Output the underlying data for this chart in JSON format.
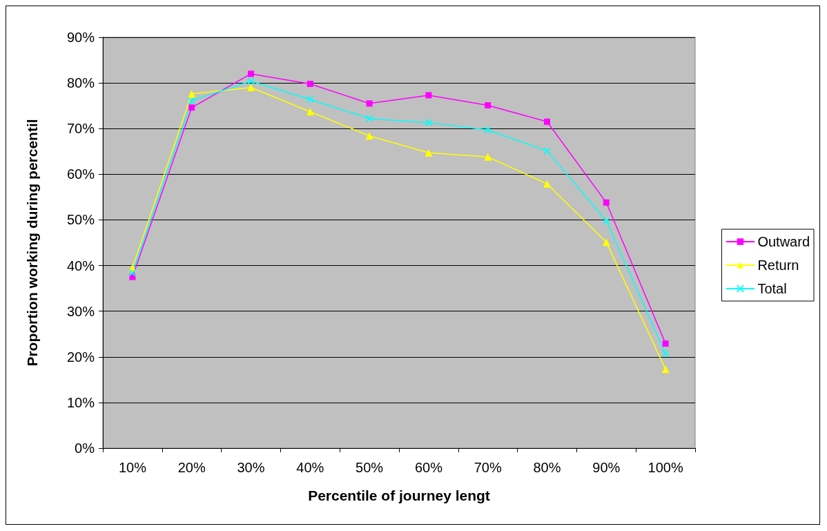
{
  "chart_data": {
    "type": "line",
    "xlabel": "Percentile of journey lengt",
    "ylabel": "Proportion working during percentil",
    "categories": [
      "10%",
      "20%",
      "30%",
      "40%",
      "50%",
      "60%",
      "70%",
      "80%",
      "90%",
      "100%"
    ],
    "series": [
      {
        "name": "Outward",
        "color": "#ff00ff",
        "marker": "square",
        "values": [
          37.5,
          74.6,
          82.0,
          79.8,
          75.5,
          77.3,
          75.1,
          71.5,
          53.8,
          22.9
        ]
      },
      {
        "name": "Return",
        "color": "#ffff00",
        "marker": "triangle",
        "values": [
          39.5,
          77.6,
          79.0,
          73.7,
          68.4,
          64.7,
          63.8,
          57.9,
          45.1,
          17.3
        ]
      },
      {
        "name": "Total",
        "color": "#00ffff",
        "marker": "cross",
        "values": [
          38.4,
          76.1,
          80.4,
          76.4,
          72.2,
          71.3,
          69.7,
          65.1,
          49.8,
          20.7
        ]
      }
    ],
    "ylim": [
      0,
      90
    ],
    "yticks": [
      {
        "value": 0,
        "label": "0%"
      },
      {
        "value": 10,
        "label": "10%"
      },
      {
        "value": 20,
        "label": "20%"
      },
      {
        "value": 30,
        "label": "30%"
      },
      {
        "value": 40,
        "label": "40%"
      },
      {
        "value": 50,
        "label": "50%"
      },
      {
        "value": 60,
        "label": "60%"
      },
      {
        "value": 70,
        "label": "70%"
      },
      {
        "value": 80,
        "label": "80%"
      },
      {
        "value": 90,
        "label": "90%"
      }
    ],
    "grid": "y",
    "legend": "right",
    "line_style": "solid"
  }
}
